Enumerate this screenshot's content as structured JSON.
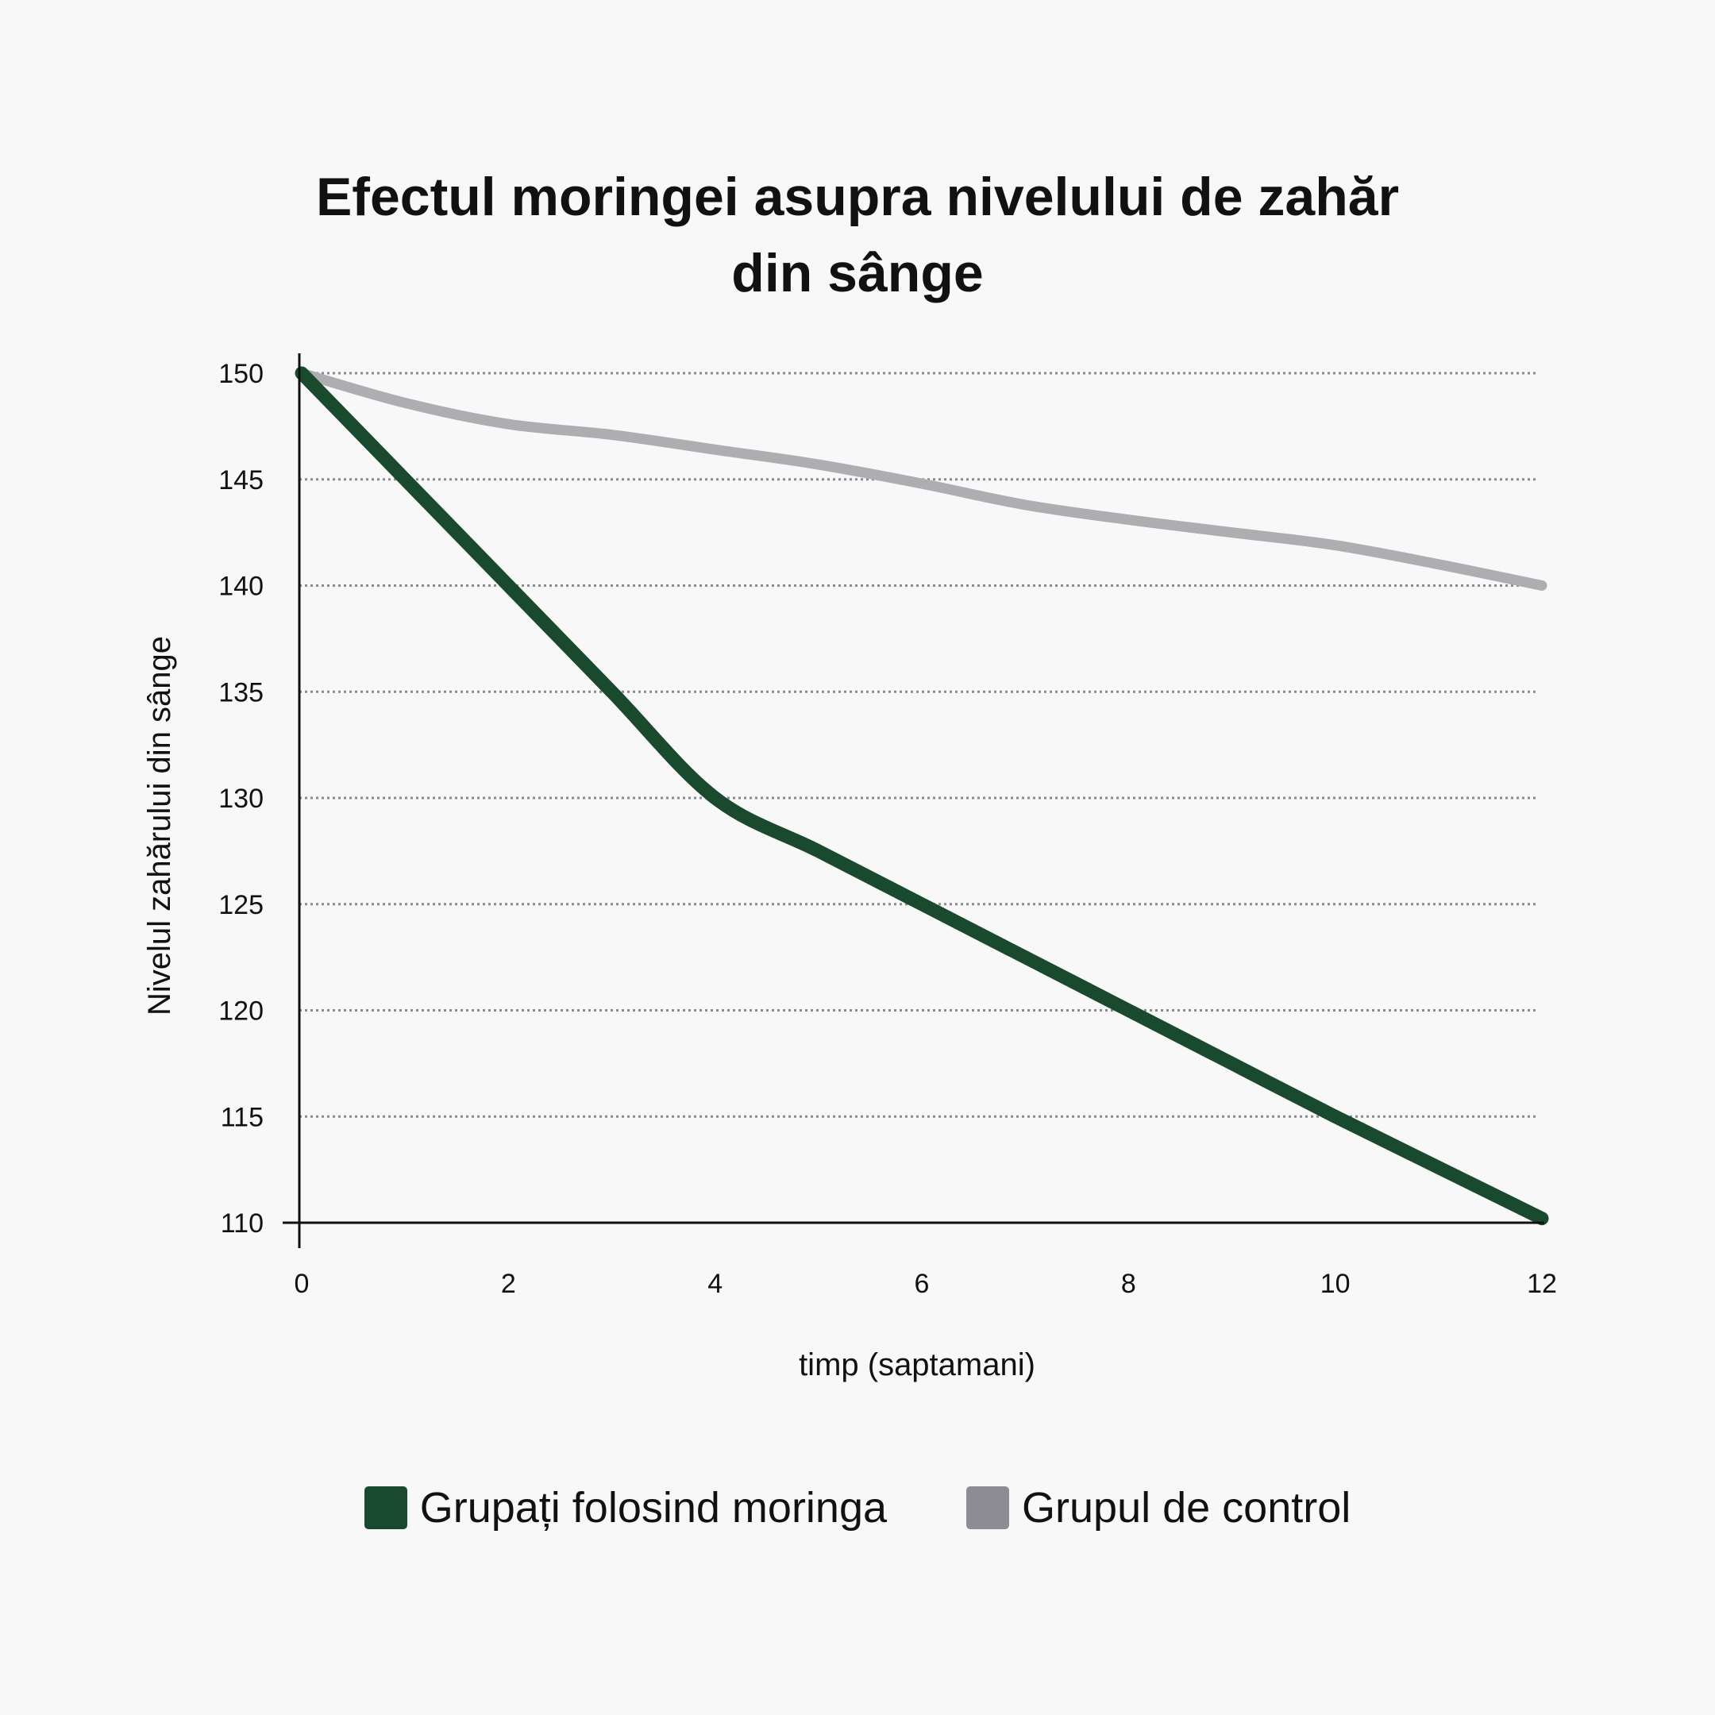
{
  "chart_data": {
    "type": "line",
    "title_lines": [
      "Efectul moringei asupra nivelului de zahăr",
      "din sânge"
    ],
    "xlabel": "timp (saptamani)",
    "ylabel": "Nivelul zahărului din sânge",
    "xlim": [
      0,
      12
    ],
    "ylim": [
      110,
      150
    ],
    "xticks": [
      0,
      2,
      4,
      6,
      8,
      10,
      12
    ],
    "yticks": [
      110,
      115,
      120,
      125,
      130,
      135,
      140,
      145,
      150
    ],
    "grid": "horizontal dotted",
    "legend_position": "bottom",
    "series": [
      {
        "name": "Grupați folosind moringa",
        "color": "#1a4a2e",
        "x": [
          0,
          1,
          2,
          3,
          4,
          5,
          6,
          7,
          8,
          9,
          10,
          11,
          12
        ],
        "y": [
          150,
          145,
          140,
          135,
          130,
          127.5,
          125,
          122.5,
          120,
          117.5,
          115,
          112.6,
          110.2
        ]
      },
      {
        "name": "Grupul de control",
        "color": "#aeaeb2",
        "legend_color": "#8e8c93",
        "x": [
          0,
          1,
          2,
          3,
          4,
          5,
          6,
          7,
          8,
          9,
          10,
          11,
          12
        ],
        "y": [
          150,
          148.6,
          147.6,
          147.1,
          146.4,
          145.7,
          144.8,
          143.8,
          143.1,
          142.5,
          141.9,
          141.0,
          140.0
        ]
      }
    ]
  }
}
